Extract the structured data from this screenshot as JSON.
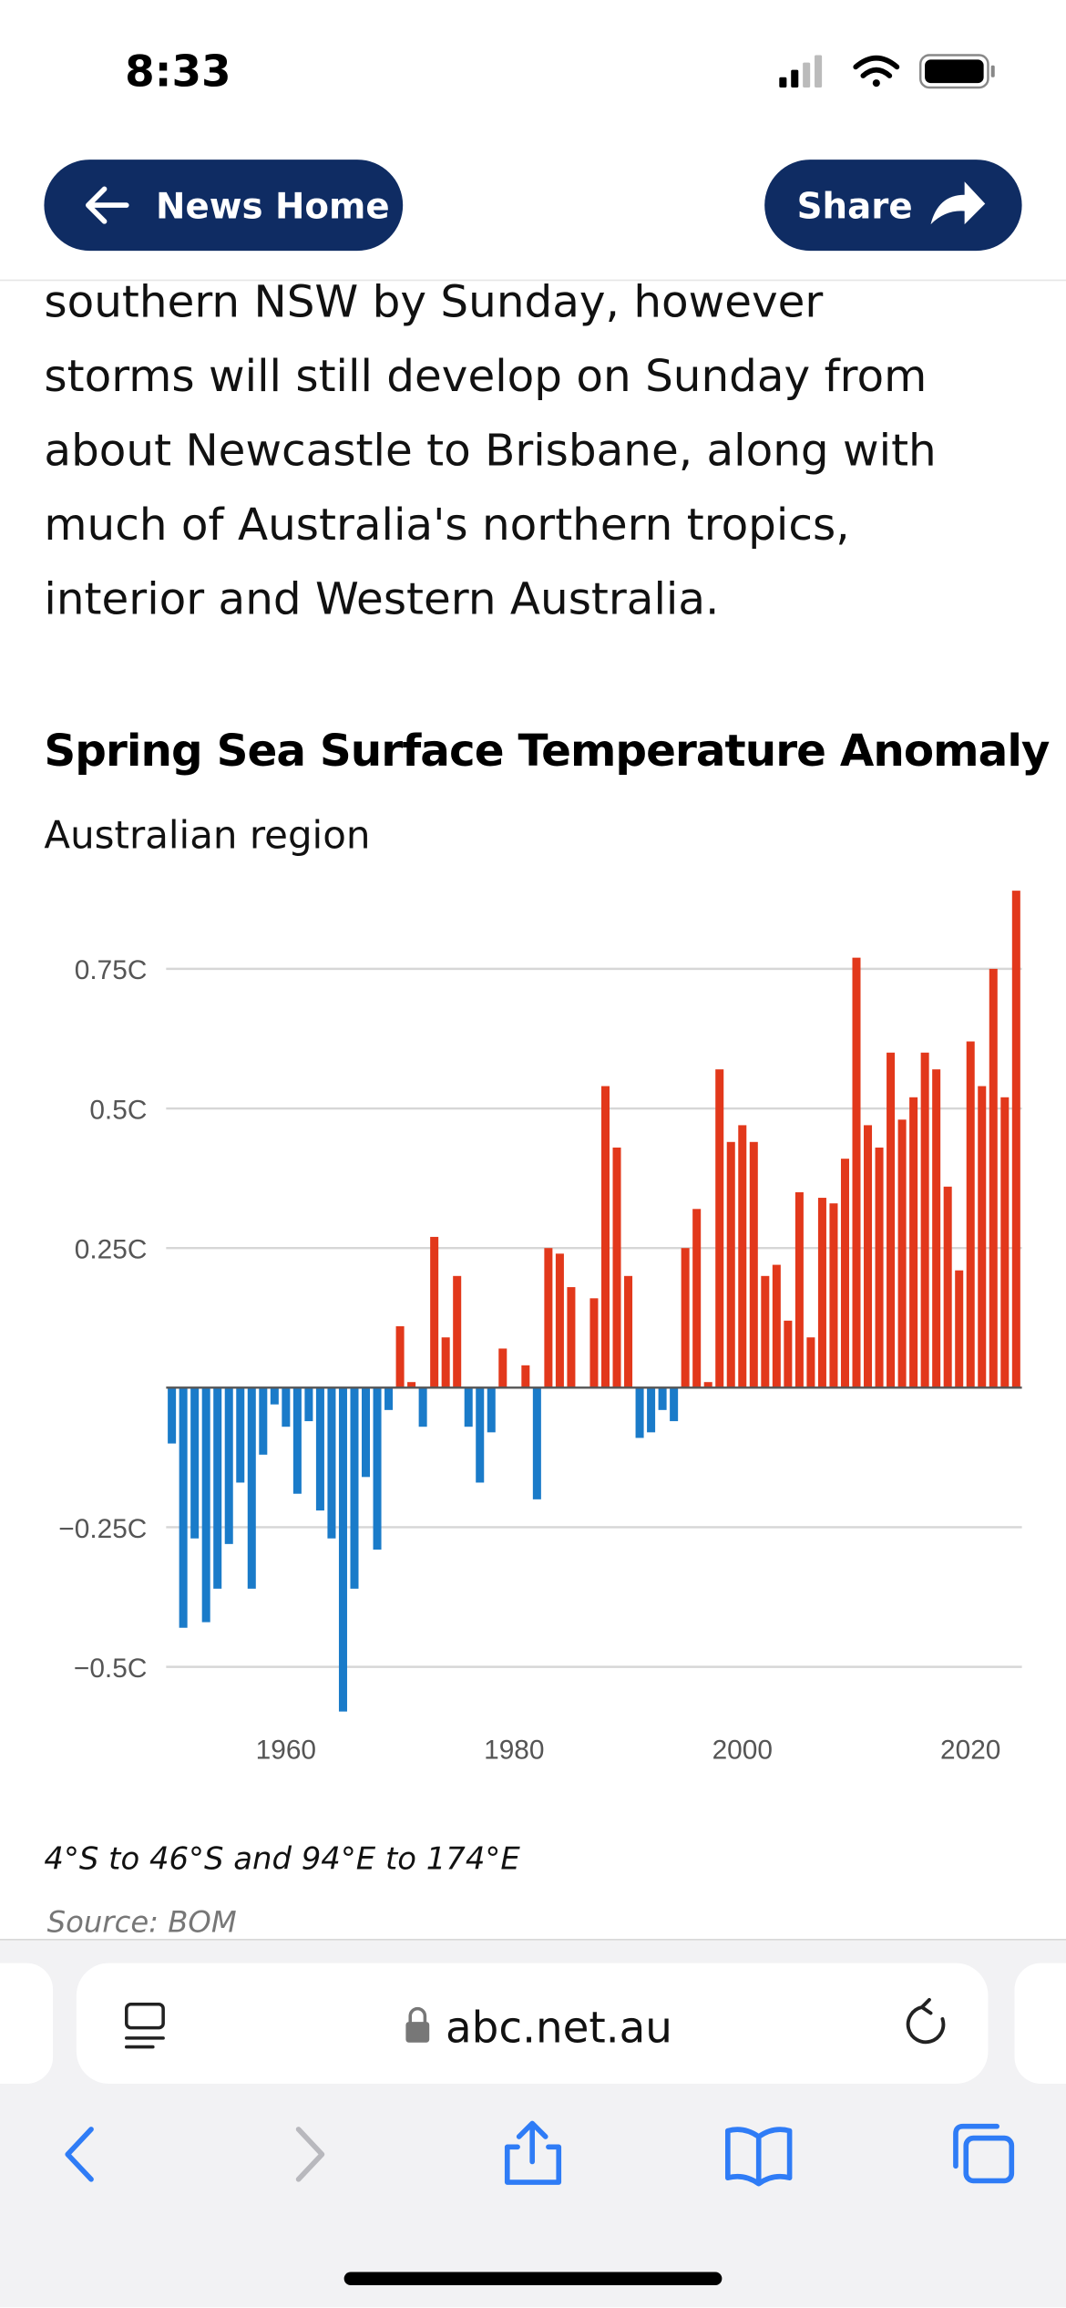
{
  "status_bar": {
    "time": "8:33"
  },
  "nav": {
    "back": "News Home",
    "share": "Share"
  },
  "article": {
    "lines": [
      "southern NSW by Sunday, however",
      "storms will still develop on Sunday from",
      "about Newcastle to Brisbane, along with",
      "much of Australia's northern tropics,",
      "interior and Western Australia."
    ]
  },
  "chart_data": {
    "type": "bar",
    "title": "Spring Sea Surface Temperature Anomaly",
    "subtitle": "Australian region",
    "x": [
      1950,
      1951,
      1952,
      1953,
      1954,
      1955,
      1956,
      1957,
      1958,
      1959,
      1960,
      1961,
      1962,
      1963,
      1964,
      1965,
      1966,
      1967,
      1968,
      1969,
      1970,
      1971,
      1972,
      1973,
      1974,
      1975,
      1976,
      1977,
      1978,
      1979,
      1980,
      1981,
      1982,
      1983,
      1984,
      1985,
      1986,
      1987,
      1988,
      1989,
      1990,
      1991,
      1992,
      1993,
      1994,
      1995,
      1996,
      1997,
      1998,
      1999,
      2000,
      2001,
      2002,
      2003,
      2004,
      2005,
      2006,
      2007,
      2008,
      2009,
      2010,
      2011,
      2012,
      2013,
      2014,
      2015,
      2016,
      2017,
      2018,
      2019,
      2020,
      2021,
      2022,
      2023,
      2024
    ],
    "values": [
      -0.1,
      -0.43,
      -0.27,
      -0.42,
      -0.36,
      -0.28,
      -0.17,
      -0.36,
      -0.12,
      -0.03,
      -0.07,
      -0.19,
      -0.06,
      -0.22,
      -0.27,
      -0.58,
      -0.36,
      -0.16,
      -0.29,
      -0.04,
      0.11,
      0.01,
      -0.07,
      0.27,
      0.09,
      0.2,
      -0.07,
      -0.17,
      -0.08,
      0.07,
      0.0,
      0.04,
      -0.2,
      0.25,
      0.24,
      0.18,
      0.0,
      0.16,
      0.54,
      0.43,
      0.2,
      -0.09,
      -0.08,
      -0.04,
      -0.06,
      0.25,
      0.32,
      0.01,
      0.57,
      0.44,
      0.47,
      0.44,
      0.2,
      0.22,
      0.12,
      0.35,
      0.09,
      0.34,
      0.33,
      0.41,
      0.77,
      0.47,
      0.43,
      0.6,
      0.48,
      0.52,
      0.6,
      0.57,
      0.36,
      0.21,
      0.62,
      0.54,
      0.75,
      0.52,
      0.89
    ],
    "positive_color": "#e2381b",
    "negative_color": "#1a7bc9",
    "xlim": [
      1949.5,
      2024.5
    ],
    "xticks": [
      1960,
      1980,
      2000,
      2020
    ],
    "ylim": [
      -0.58,
      0.89
    ],
    "yticks": [
      {
        "value": -0.5,
        "label": "−0.5C"
      },
      {
        "value": -0.25,
        "label": "−0.25C"
      },
      {
        "value": 0.25,
        "label": "0.25C"
      },
      {
        "value": 0.5,
        "label": "0.5C"
      },
      {
        "value": 0.75,
        "label": "0.75C"
      }
    ],
    "grid": true,
    "note": "4°S to 46°S and 94°E to 174°E",
    "source": "Source: BOM"
  },
  "browser": {
    "url": "abc.net.au"
  }
}
